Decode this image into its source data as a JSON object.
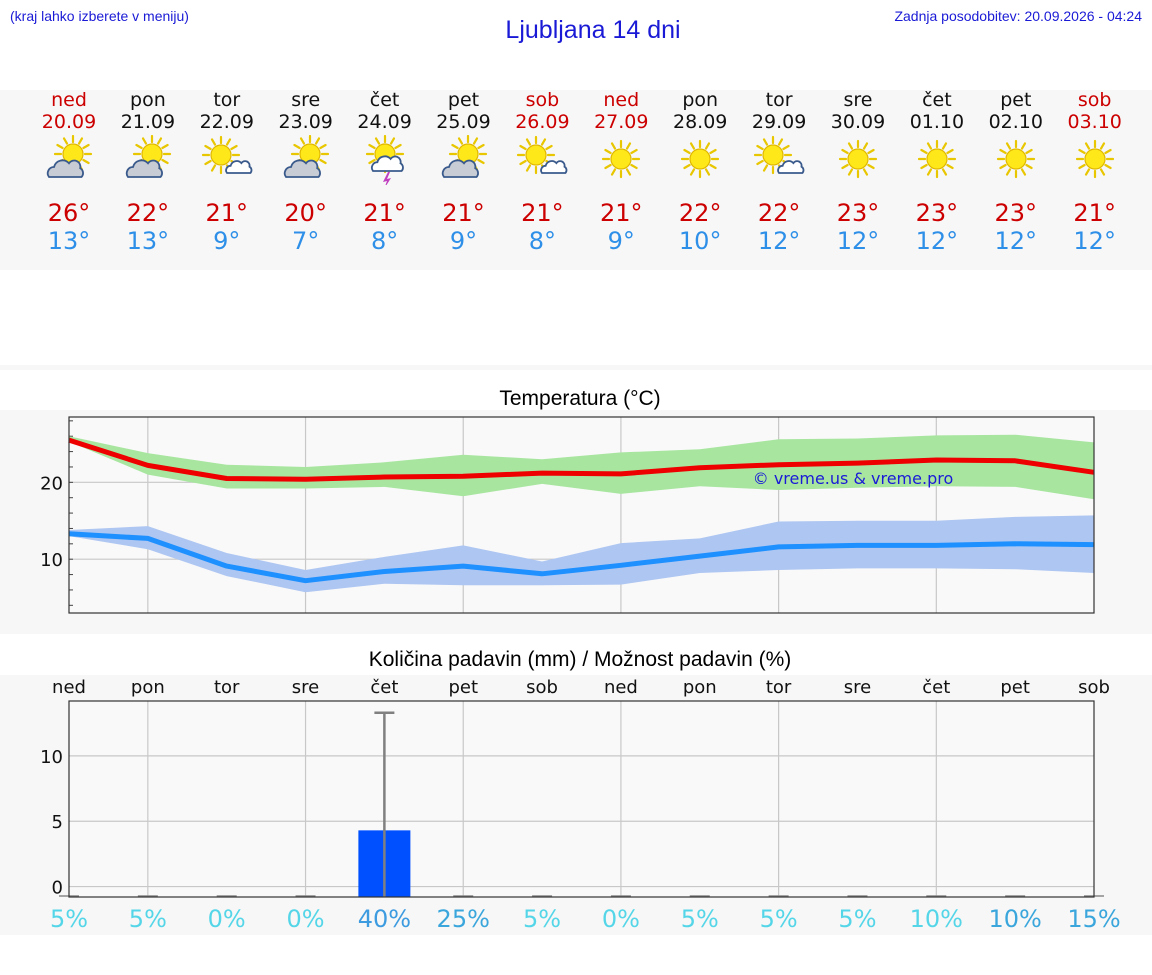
{
  "header": {
    "hint": "(kraj lahko izberete v meniju)",
    "title": "Ljubljana 14 dni",
    "updated": "Zadnja posodobitev: 20.09.2026 - 04:24"
  },
  "colors": {
    "max": "#cc0000",
    "min": "#2e8fe8",
    "max_line": "#ee0000",
    "min_line": "#1e90ff",
    "max_band": "#a8e6a0",
    "min_band": "#aec6f2",
    "bar": "#0050ff"
  },
  "days": [
    {
      "name": "ned",
      "date": "20.09",
      "weekend": true,
      "icon": "sun-cloud-icon",
      "max": "26°",
      "min": "13°"
    },
    {
      "name": "pon",
      "date": "21.09",
      "weekend": false,
      "icon": "sun-cloud-icon",
      "max": "22°",
      "min": "13°"
    },
    {
      "name": "tor",
      "date": "22.09",
      "weekend": false,
      "icon": "sun-small-cloud-icon",
      "max": "21°",
      "min": "9°"
    },
    {
      "name": "sre",
      "date": "23.09",
      "weekend": false,
      "icon": "sun-cloud-icon",
      "max": "20°",
      "min": "7°"
    },
    {
      "name": "čet",
      "date": "24.09",
      "weekend": false,
      "icon": "sun-cloud-lightning-icon",
      "max": "21°",
      "min": "8°"
    },
    {
      "name": "pet",
      "date": "25.09",
      "weekend": false,
      "icon": "sun-cloud-icon",
      "max": "21°",
      "min": "9°"
    },
    {
      "name": "sob",
      "date": "26.09",
      "weekend": true,
      "icon": "sun-small-cloud-icon",
      "max": "21°",
      "min": "8°"
    },
    {
      "name": "ned",
      "date": "27.09",
      "weekend": true,
      "icon": "sun-icon",
      "max": "21°",
      "min": "9°"
    },
    {
      "name": "pon",
      "date": "28.09",
      "weekend": false,
      "icon": "sun-icon",
      "max": "22°",
      "min": "10°"
    },
    {
      "name": "tor",
      "date": "29.09",
      "weekend": false,
      "icon": "sun-small-cloud-icon",
      "max": "22°",
      "min": "12°"
    },
    {
      "name": "sre",
      "date": "30.09",
      "weekend": false,
      "icon": "sun-icon",
      "max": "23°",
      "min": "12°"
    },
    {
      "name": "čet",
      "date": "01.10",
      "weekend": false,
      "icon": "sun-icon",
      "max": "23°",
      "min": "12°"
    },
    {
      "name": "pet",
      "date": "02.10",
      "weekend": false,
      "icon": "sun-icon",
      "max": "23°",
      "min": "12°"
    },
    {
      "name": "sob",
      "date": "03.10",
      "weekend": true,
      "icon": "sun-icon",
      "max": "21°",
      "min": "12°"
    }
  ],
  "chart_data": [
    {
      "type": "line",
      "title": "Temperatura (°C)",
      "watermark": "© vreme.us & vreme.pro",
      "x": [
        0,
        1,
        2,
        3,
        4,
        5,
        6,
        7,
        8,
        9,
        10,
        11,
        12,
        13
      ],
      "ylim": [
        3,
        28.5
      ],
      "yticks": [
        10,
        20
      ],
      "grid": true,
      "series": [
        {
          "key": "max",
          "values": [
            25.5,
            22.2,
            20.5,
            20.4,
            20.7,
            20.8,
            21.2,
            21.1,
            21.9,
            22.3,
            22.5,
            22.9,
            22.8,
            21.3
          ],
          "band_low": [
            25.3,
            21.0,
            19.2,
            19.2,
            19.4,
            18.2,
            19.8,
            18.5,
            19.5,
            19.0,
            19.3,
            19.5,
            19.4,
            17.8
          ],
          "band_high": [
            26.0,
            23.8,
            22.3,
            22.0,
            22.6,
            23.6,
            23.0,
            23.9,
            24.3,
            25.6,
            25.7,
            26.1,
            26.2,
            25.2
          ]
        },
        {
          "key": "min",
          "values": [
            13.3,
            12.7,
            9.1,
            7.2,
            8.4,
            9.1,
            8.1,
            9.2,
            10.4,
            11.6,
            11.8,
            11.8,
            12.0,
            11.9
          ],
          "band_low": [
            13.0,
            11.3,
            7.8,
            5.7,
            6.8,
            6.6,
            6.6,
            6.7,
            8.2,
            8.6,
            8.8,
            8.8,
            8.7,
            8.2
          ],
          "band_high": [
            13.8,
            14.3,
            10.8,
            8.6,
            10.3,
            11.8,
            9.7,
            12.1,
            12.7,
            14.9,
            15.0,
            15.0,
            15.5,
            15.7
          ]
        }
      ]
    },
    {
      "type": "bar",
      "title": "Količina padavin (mm) / Možnost padavin (%)",
      "categories": [
        "ned",
        "pon",
        "tor",
        "sre",
        "čet",
        "pet",
        "sob",
        "ned",
        "pon",
        "tor",
        "sre",
        "čet",
        "pet",
        "sob"
      ],
      "values": [
        0,
        0,
        0,
        0,
        4.3,
        0,
        0,
        0,
        0,
        0,
        0,
        0,
        0,
        0
      ],
      "error_high": [
        0,
        0,
        0,
        0,
        13.3,
        0,
        0,
        0,
        0,
        0,
        0,
        0,
        0,
        0
      ],
      "ylim": [
        -0.8,
        14.2
      ],
      "yticks": [
        0,
        5,
        10
      ],
      "grid": true,
      "probabilities": [
        "5%",
        "5%",
        "0%",
        "0%",
        "40%",
        "25%",
        "5%",
        "0%",
        "5%",
        "5%",
        "5%",
        "10%",
        "10%",
        "15%"
      ],
      "probability_colors": [
        "#55d6e8",
        "#55d6e8",
        "#55d6e8",
        "#55d6e8",
        "#3d9be0",
        "#3aa6dc",
        "#55d6e8",
        "#55d6e8",
        "#55d6e8",
        "#55d6e8",
        "#55d6e8",
        "#55d6e8",
        "#3aa6dc",
        "#3aa6dc"
      ]
    }
  ]
}
